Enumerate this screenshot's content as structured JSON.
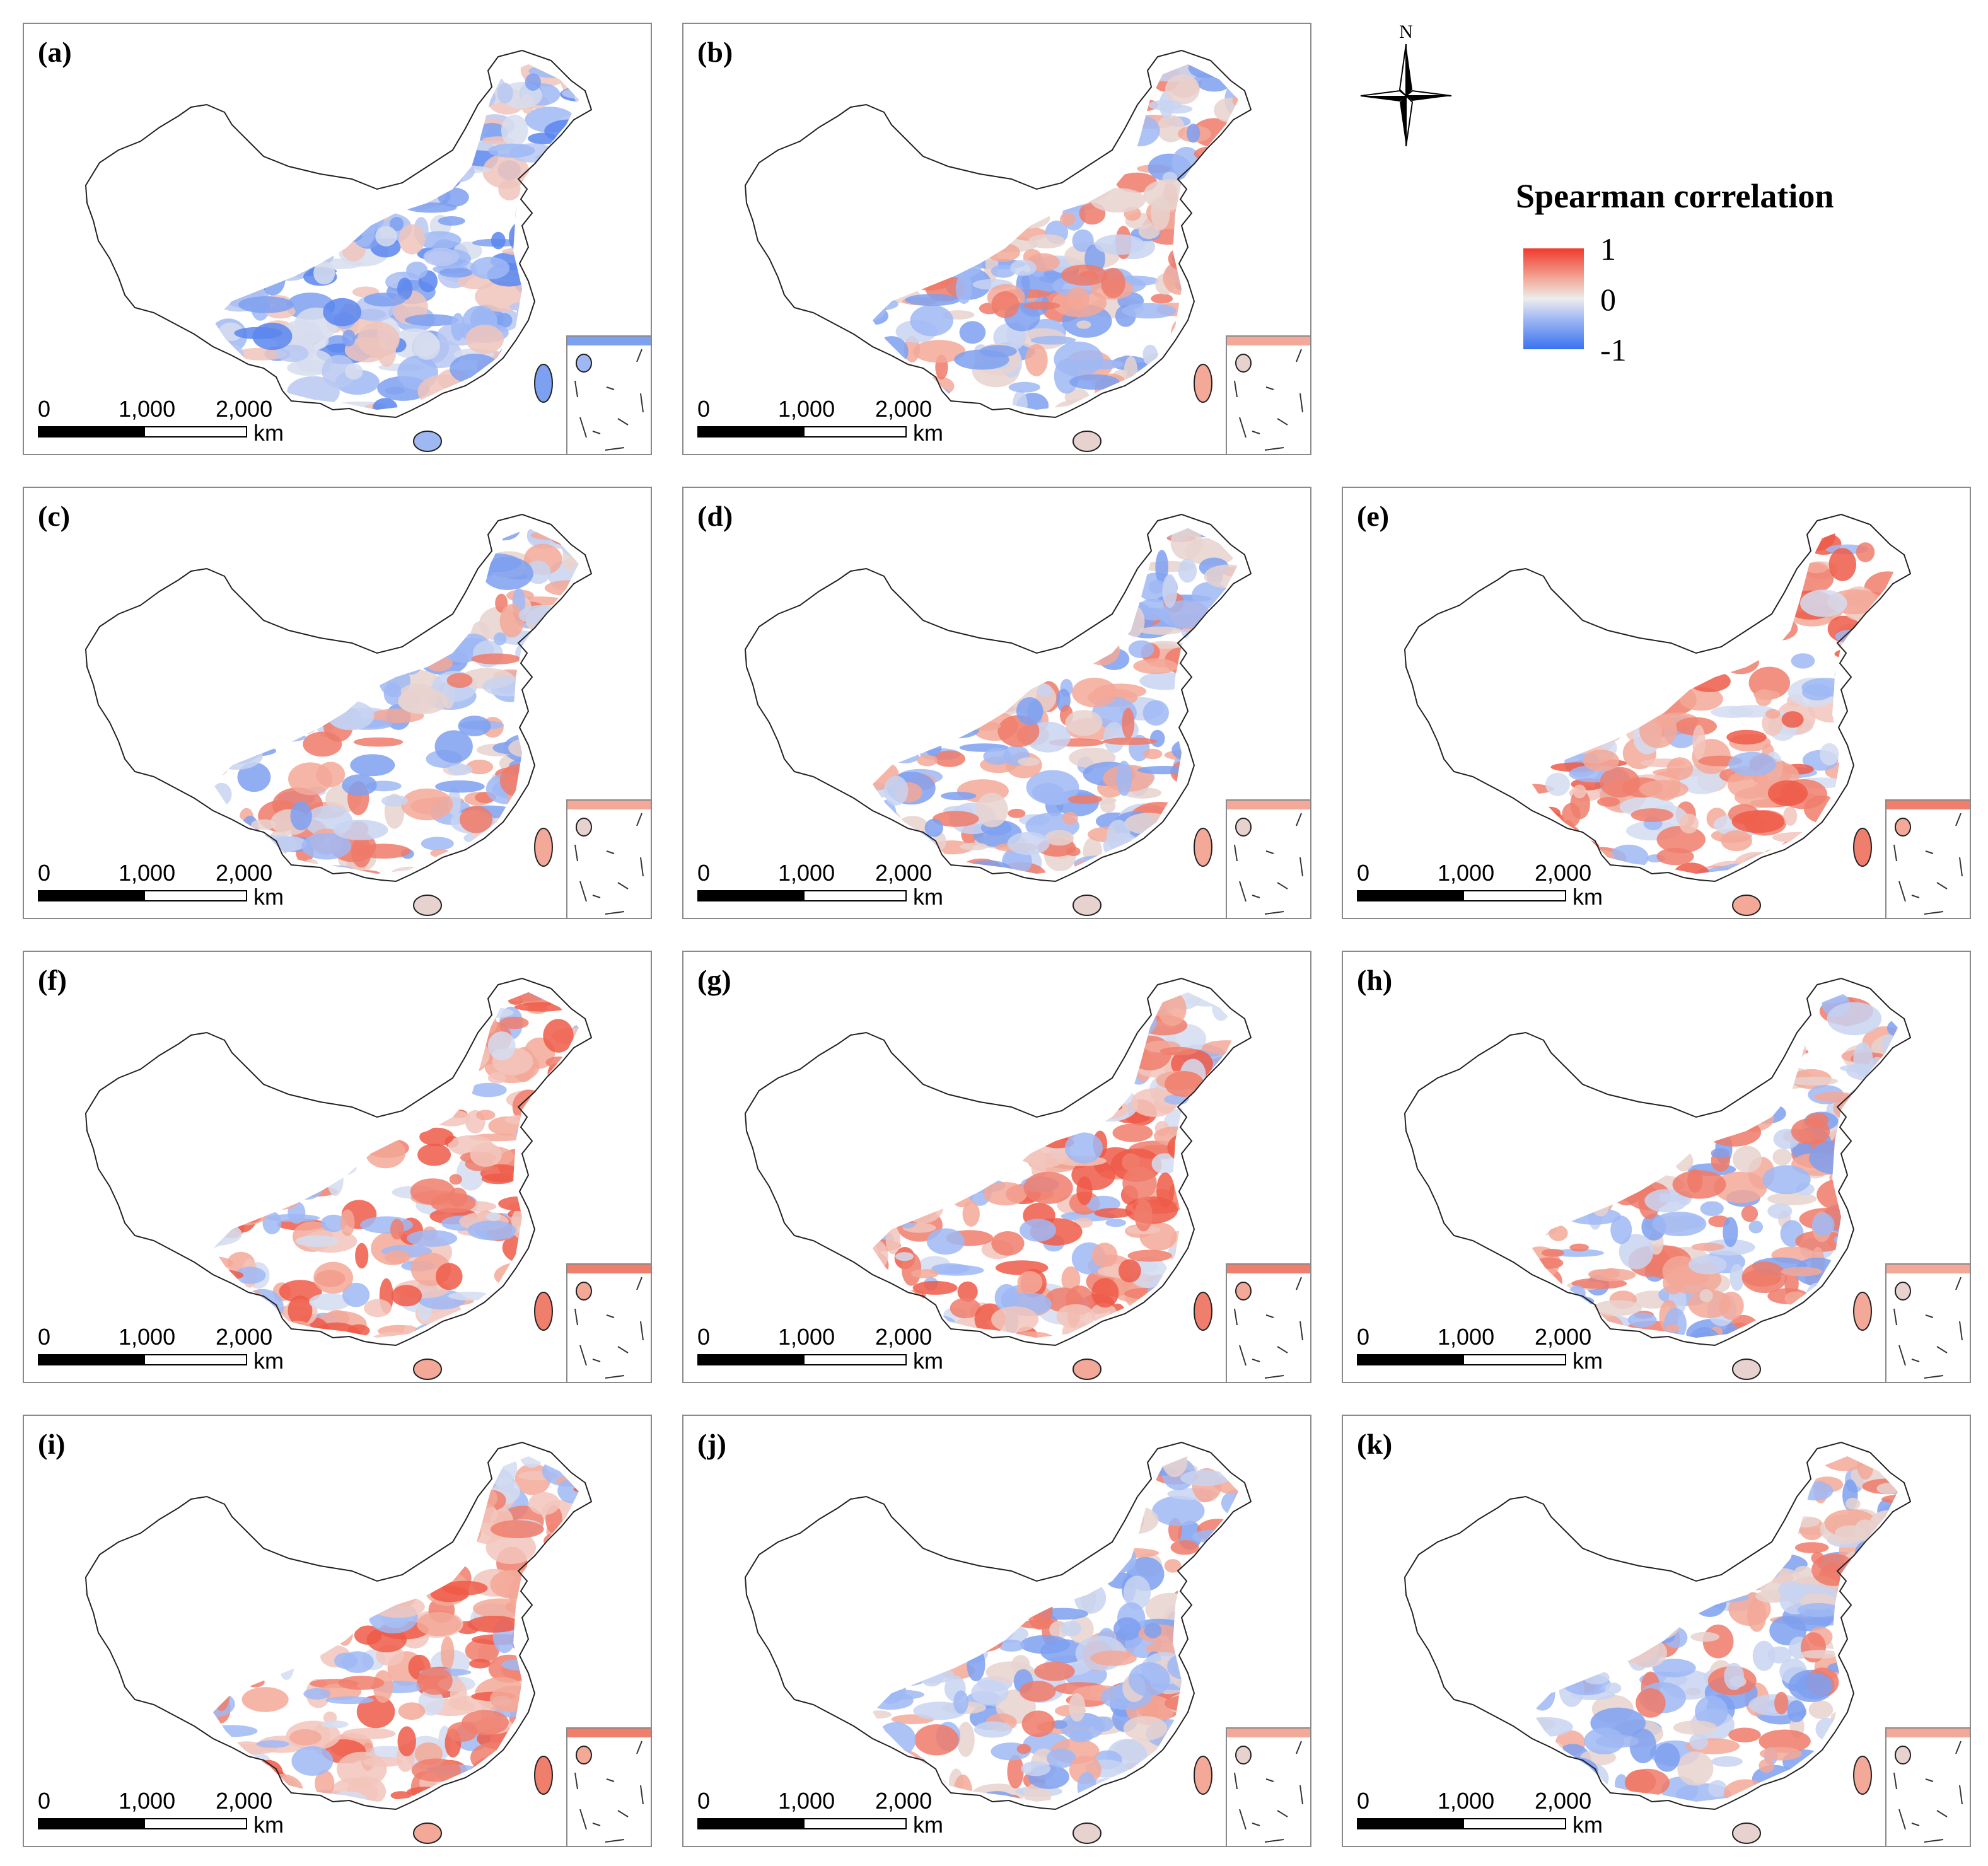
{
  "legend": {
    "title": "Spearman correlation",
    "max_label": "1",
    "mid_label": "0",
    "min_label": "-1",
    "color_positive": "#ef3a2c",
    "color_neutral": "#ededed",
    "color_negative": "#3a72ef"
  },
  "north_arrow": {
    "label": "N"
  },
  "scale_bar": {
    "tick0": "0",
    "tick1": "1,000",
    "tick2": "2,000",
    "unit": "km"
  },
  "panels": [
    {
      "label": "(a)",
      "dominant": "negative"
    },
    {
      "label": "(b)",
      "dominant": "mixed"
    },
    {
      "label": "(c)",
      "dominant": "mixed"
    },
    {
      "label": "(d)",
      "dominant": "mixed"
    },
    {
      "label": "(e)",
      "dominant": "positive"
    },
    {
      "label": "(f)",
      "dominant": "positive"
    },
    {
      "label": "(g)",
      "dominant": "positive"
    },
    {
      "label": "(h)",
      "dominant": "mixed"
    },
    {
      "label": "(i)",
      "dominant": "positive"
    },
    {
      "label": "(j)",
      "dominant": "mixed"
    },
    {
      "label": "(k)",
      "dominant": "mixed"
    }
  ]
}
